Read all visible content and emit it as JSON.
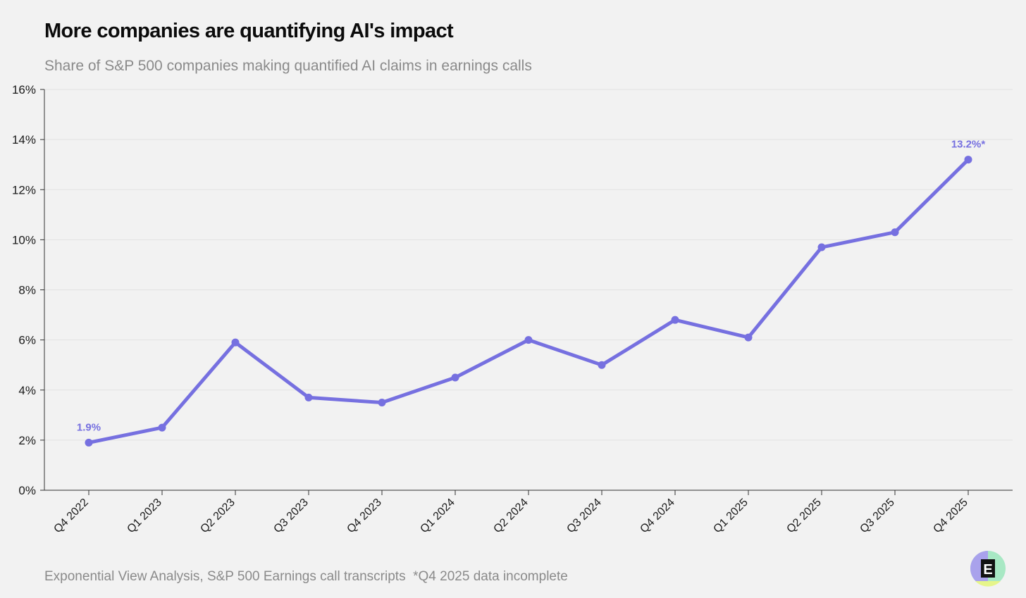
{
  "header": {
    "title": "More companies are quantifying AI's impact",
    "subtitle": "Share of S&P 500 companies making quantified AI claims in earnings calls"
  },
  "footer": {
    "source": "Exponential View Analysis, S&P 500 Earnings call transcripts  *Q4 2025 data incomplete"
  },
  "colors": {
    "line": "#7670e0",
    "axis": "#333333",
    "grid": "#e2e2e2",
    "label_text": "#7670e0"
  },
  "chart_data": {
    "type": "line",
    "title": "More companies are quantifying AI's impact",
    "subtitle": "Share of S&P 500 companies making quantified AI claims in earnings calls",
    "xlabel": "",
    "ylabel": "",
    "ylim": [
      0,
      16
    ],
    "yticks": [
      0,
      2,
      4,
      6,
      8,
      10,
      12,
      14,
      16
    ],
    "ytick_labels": [
      "0%",
      "2%",
      "4%",
      "6%",
      "8%",
      "10%",
      "12%",
      "14%",
      "16%"
    ],
    "grid": true,
    "categories": [
      "Q4 2022",
      "Q1 2023",
      "Q2 2023",
      "Q3 2023",
      "Q4 2023",
      "Q1 2024",
      "Q2 2024",
      "Q3 2024",
      "Q4 2024",
      "Q1 2025",
      "Q2 2025",
      "Q3 2025",
      "Q4 2025"
    ],
    "series": [
      {
        "name": "Share of S&P 500 companies",
        "values": [
          1.9,
          2.5,
          5.9,
          3.7,
          3.5,
          4.5,
          6.0,
          5.0,
          6.8,
          6.1,
          9.7,
          10.3,
          13.2
        ]
      }
    ],
    "annotations": [
      {
        "index": 0,
        "text": "1.9%"
      },
      {
        "index": 12,
        "text": "13.2%*"
      }
    ]
  },
  "logo": {
    "letter": "E",
    "name": "exponential-view-logo"
  }
}
